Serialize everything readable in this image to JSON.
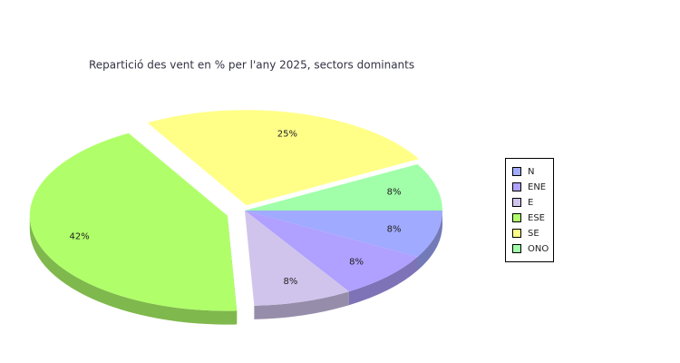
{
  "chart_data": {
    "type": "pie3d",
    "title": "Repartició des vent en % per l'any 2025, sectors dominants",
    "categories": [
      "N",
      "ENE",
      "E",
      "ESE",
      "SE",
      "ONO"
    ],
    "values": [
      8,
      8,
      8,
      42,
      25,
      8
    ],
    "value_labels": [
      "8%",
      "8%",
      "8%",
      "42%",
      "25%",
      "8%"
    ],
    "colors": [
      "#a0aaff",
      "#b0a0ff",
      "#d0c4ec",
      "#b0ff6a",
      "#ffff88",
      "#a0ffa8"
    ],
    "legend": "right"
  }
}
